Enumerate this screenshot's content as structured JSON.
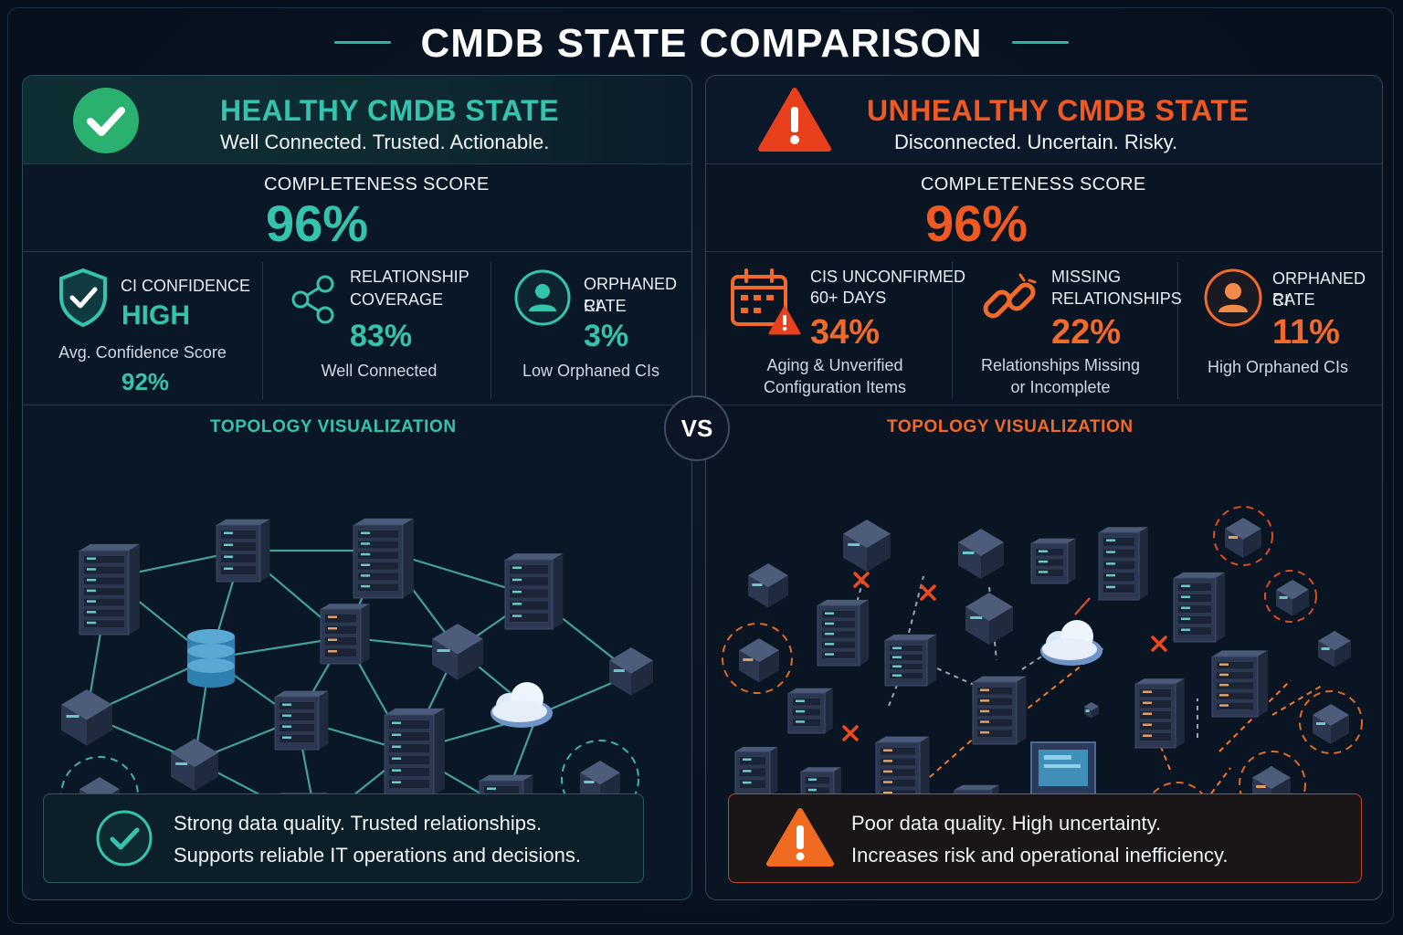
{
  "title": "CMDB STATE COMPARISON",
  "vs_label": "VS",
  "healthy": {
    "title": "HEALTHY CMDB STATE",
    "subtitle": "Well Connected. Trusted. Actionable.",
    "score_label": "COMPLETENESS SCORE",
    "score_value": "96%",
    "metrics": [
      {
        "title": "CI CONFIDENCE",
        "value": "HIGH",
        "desc": "Avg. Confidence Score",
        "extra": "92%",
        "icon": "shield-check-icon"
      },
      {
        "title_l1": "RELATIONSHIP",
        "title_l2": "COVERAGE",
        "value": "83%",
        "desc": "Well Connected",
        "icon": "share-nodes-icon"
      },
      {
        "title_l1": "ORPHANED CI",
        "title_l2": "RATE",
        "value": "3%",
        "desc": "Low Orphaned CIs",
        "icon": "user-icon"
      }
    ],
    "topology_title": "TOPOLOGY VISUALIZATION",
    "footer_l1": "Strong data quality. Trusted relationships.",
    "footer_l2": "Supports reliable IT operations and decisions.",
    "accent": "#34c4ad"
  },
  "unhealthy": {
    "title": "UNHEALTHY CMDB STATE",
    "subtitle": "Disconnected. Uncertain. Risky.",
    "score_label": "COMPLETENESS SCORE",
    "score_value": "96%",
    "metrics": [
      {
        "title_l1": "CIS UNCONFIRMED",
        "title_l2": "60+ DAYS",
        "value": "34%",
        "desc_l1": "Aging & Unverified",
        "desc_l2": "Configuration Items",
        "icon": "calendar-warning-icon"
      },
      {
        "title_l1": "MISSING",
        "title_l2": "RELATIONSHIPS",
        "value": "22%",
        "desc_l1": "Relationships Missing",
        "desc_l2": "or Incomplete",
        "icon": "broken-link-icon"
      },
      {
        "title_l1": "ORPHANED CI",
        "title_l2": "RATE",
        "value": "11%",
        "desc": "High Orphaned CIs",
        "icon": "user-icon"
      }
    ],
    "topology_title": "TOPOLOGY VISUALIZATION",
    "footer_l1": "Poor data quality. High uncertainty.",
    "footer_l2": "Increases risk and operational inefficiency.",
    "accent": "#f05a22"
  }
}
